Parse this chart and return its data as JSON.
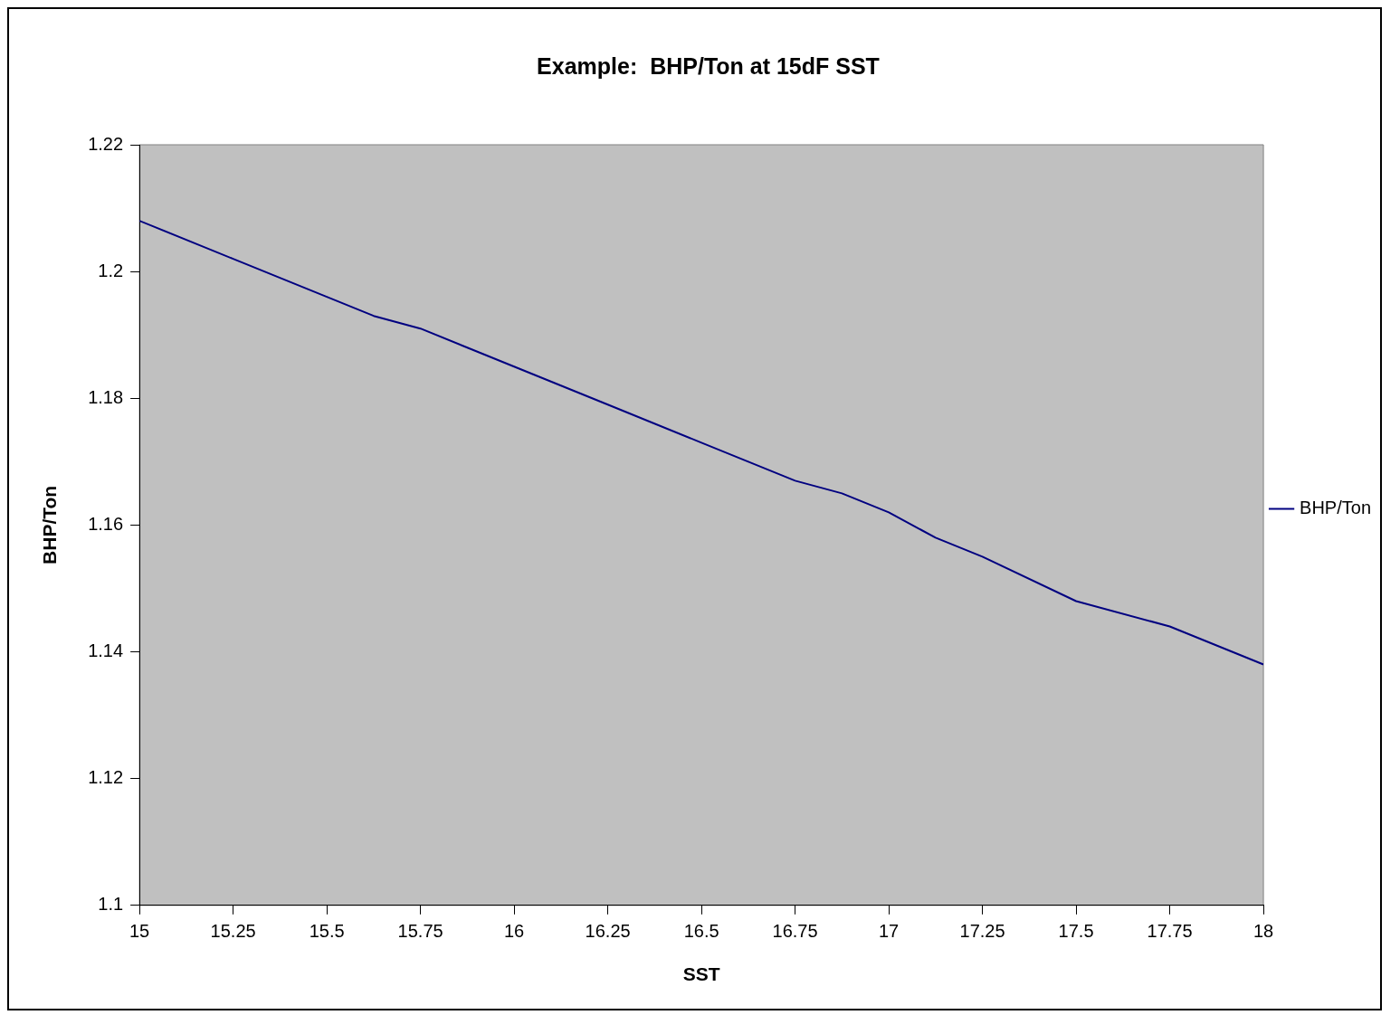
{
  "chart_data": {
    "type": "line",
    "title": "Example:  BHP/Ton at 15dF SST",
    "xlabel": "SST",
    "ylabel": "BHP/Ton",
    "x": [
      15,
      15.25,
      15.5,
      15.625,
      15.75,
      15.875,
      16,
      16.25,
      16.5,
      16.625,
      16.75,
      16.875,
      17,
      17.125,
      17.25,
      17.5,
      17.75,
      18
    ],
    "series": [
      {
        "name": "BHP/Ton",
        "color": "#000080",
        "values": [
          1.208,
          1.202,
          1.196,
          1.193,
          1.191,
          1.188,
          1.185,
          1.179,
          1.173,
          1.17,
          1.167,
          1.165,
          1.162,
          1.158,
          1.155,
          1.148,
          1.144,
          1.138
        ]
      }
    ],
    "xlim": [
      15,
      18
    ],
    "xticks": [
      15,
      15.25,
      15.5,
      15.75,
      16,
      16.25,
      16.5,
      16.75,
      17,
      17.25,
      17.5,
      17.75,
      18
    ],
    "ylim": [
      1.1,
      1.22
    ],
    "yticks": [
      1.1,
      1.12,
      1.14,
      1.16,
      1.18,
      1.2,
      1.22
    ],
    "grid": false,
    "legend": "right",
    "marker": "none",
    "line_style": "solid"
  }
}
